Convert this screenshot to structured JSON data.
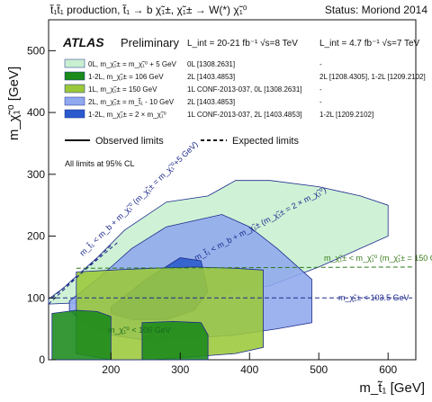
{
  "header": {
    "title": "t̃₁t̃₁ production, t̃₁ → b χ̃₁±, χ̃₁± → W(*) χ̃₁⁰",
    "status": "Status: Moriond 2014"
  },
  "atlas": {
    "name": "ATLAS",
    "prelim": "Preliminary",
    "lumi8": "L_int = 20-21 fb⁻¹ √s=8 TeV",
    "lumi7": "L_int = 4.7 fb⁻¹ √s=7 TeV",
    "note": "All limits at 95% CL"
  },
  "legend": {
    "entries": [
      {
        "label": "0L, m_χ̃₁± = m_χ̃₁⁰ + 5 GeV",
        "ref8": "0L [1308.2631]",
        "ref7": "-",
        "color": "#c8f0d0"
      },
      {
        "label": "1-2L, m_χ̃₁± = 106 GeV",
        "ref8": "2L [1403.4853]",
        "ref7": "2L [1208.4305], 1-2L [1209.2102]",
        "color": "#1a8a1a"
      },
      {
        "label": "1L, m_χ̃₁± = 150 GeV",
        "ref8": "1L CONF-2013-037, 0L [1308.2631]",
        "ref7": "-",
        "color": "#9bc83a"
      },
      {
        "label": "2L, m_χ̃₁± = m_t̃₁ - 10 GeV",
        "ref8": "2L [1403.4853]",
        "ref7": "-",
        "color": "#8fa8ee"
      },
      {
        "label": "1-2L, m_χ̃₁± = 2 × m_χ̃₁⁰",
        "ref8": "1L CONF-2013-037, 2L [1403.4853]",
        "ref7": "1-2L [1209.2102]",
        "color": "#2a5acc"
      }
    ],
    "observed": "Observed limits",
    "expected": "Expected limits"
  },
  "annotations": {
    "diag5": "m_t̃₁ < m_b + m_χ̃₁⁰ (m_χ̃₁± = m_χ̃₁⁰+5 GeV)",
    "diag2": "m_t̃₁ < m_b + m_χ̃₁± (m_χ̃₁± = 2 × m_χ̃₁⁰)",
    "lep150": "m_χ̃₁± < m_χ̃₁⁰ (m_χ̃₁± = 150 GeV)",
    "lep103": "m_χ̃₁± < 103.5 GeV",
    "lep106": "m_χ̃₁⁰ < 106 GeV"
  },
  "chart_data": {
    "type": "area",
    "xlabel": "m_t̃₁ [GeV]",
    "ylabel": "m_χ̃₁⁰ [GeV]",
    "xlim": [
      110,
      640
    ],
    "ylim": [
      0,
      550
    ],
    "xticks": [
      200,
      300,
      400,
      500,
      600
    ],
    "yticks": [
      0,
      100,
      200,
      300,
      400,
      500
    ],
    "grid": false,
    "legend_position": "top",
    "series": [
      {
        "name": "0L, m_χ̃₁± = m_χ̃₁⁰ + 5 GeV",
        "color": "#c8f0d0",
        "x": [
          110,
          130,
          150,
          180,
          220,
          280,
          340,
          380,
          430,
          500,
          560,
          600,
          600,
          560,
          500,
          430,
          330,
          230,
          150,
          110
        ],
        "y": [
          98,
          115,
          135,
          165,
          210,
          255,
          265,
          290,
          290,
          280,
          265,
          250,
          200,
          180,
          150,
          120,
          100,
          95,
          92,
          90
        ]
      },
      {
        "name": "2L, m_χ̃₁± = m_t̃₁ - 10 GeV",
        "color": "#8fa8ee",
        "x": [
          140,
          180,
          230,
          280,
          320,
          360,
          400,
          440,
          490,
          490,
          440,
          380,
          320,
          260,
          200,
          160,
          140
        ],
        "y": [
          95,
          130,
          180,
          215,
          225,
          235,
          215,
          180,
          130,
          60,
          50,
          40,
          35,
          30,
          40,
          60,
          80
        ]
      },
      {
        "name": "1-2L, m_χ̃₁± = 2 × m_χ̃₁⁰",
        "color": "#2a5acc",
        "x": [
          200,
          250,
          300,
          330,
          340,
          320,
          280,
          230,
          200
        ],
        "y": [
          85,
          130,
          165,
          160,
          110,
          80,
          65,
          65,
          75
        ]
      },
      {
        "name": "1L, m_χ̃₁± = 150 GeV",
        "color": "#9bc83a",
        "x": [
          150,
          200,
          260,
          320,
          380,
          420,
          420,
          380,
          320,
          260,
          200,
          150
        ],
        "y": [
          142,
          145,
          148,
          150,
          148,
          145,
          20,
          10,
          5,
          0,
          0,
          10
        ]
      },
      {
        "name": "1-2L, m_χ̃₁± = 106 GeV",
        "color": "#1a8a1a",
        "x": [
          115,
          150,
          180,
          200,
          200,
          175,
          150,
          115
        ],
        "y": [
          75,
          80,
          78,
          70,
          0,
          0,
          0,
          0
        ]
      },
      {
        "name": "1-2L, m_χ̃₁± = 106 GeV",
        "color": "#1a8a1a",
        "x": [
          245,
          290,
          330,
          340,
          340,
          290,
          245
        ],
        "y": [
          60,
          62,
          60,
          40,
          0,
          0,
          0
        ]
      }
    ]
  }
}
